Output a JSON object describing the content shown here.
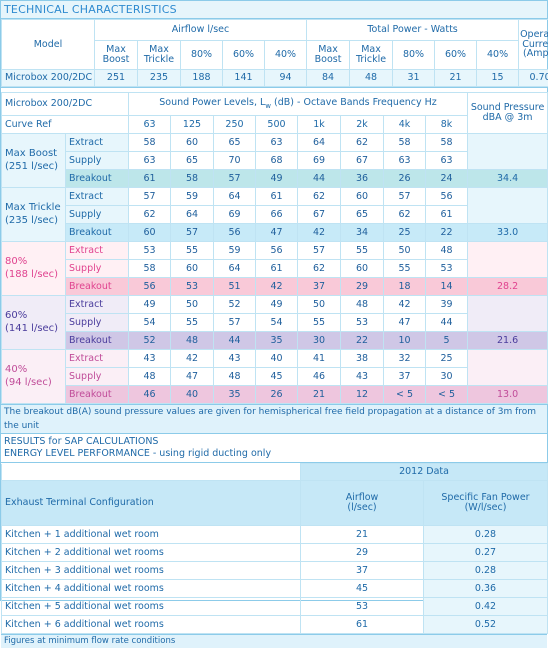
{
  "title": "TECHNICAL CHARACTERISTICS",
  "table1": {
    "model_label": "Model",
    "airflow_label": "Airflow l/sec",
    "power_label": "Total Power - Watts",
    "current_label": "Operating Current (Amps)",
    "sub_headers": [
      "Max Boost",
      "Max Trickle",
      "80%",
      "60%",
      "40%",
      "Max Boost",
      "Max Trickle",
      "80%",
      "60%",
      "40%"
    ],
    "row": {
      "model": "Microbox 200/2DC",
      "values": [
        "251",
        "235",
        "188",
        "141",
        "94",
        "84",
        "48",
        "31",
        "21",
        "15",
        "0.70"
      ]
    }
  },
  "table2": {
    "model_label": "Microbox 200/2DC",
    "sound_power_label_prefix": "Sound Power Levels, L",
    "sound_power_label_sub": "w",
    "sound_power_label_suffix": " (dB) - Octave Bands Frequency Hz",
    "sound_pressure_label": "Sound Pressure dBA @ 3m",
    "curve_ref_label": "Curve Ref",
    "bands": [
      "63",
      "125",
      "250",
      "500",
      "1k",
      "2k",
      "4k",
      "8k"
    ],
    "groups": [
      {
        "name": "Max Boost",
        "flow": "(251 l/sec)",
        "rows": [
          {
            "label": "Extract",
            "values": [
              "58",
              "60",
              "65",
              "63",
              "64",
              "62",
              "58",
              "58"
            ]
          },
          {
            "label": "Supply",
            "values": [
              "63",
              "65",
              "70",
              "68",
              "69",
              "67",
              "63",
              "63"
            ]
          },
          {
            "label": "Breakout",
            "values": [
              "61",
              "58",
              "57",
              "49",
              "44",
              "36",
              "26",
              "24"
            ]
          }
        ],
        "pressure": "34.4"
      },
      {
        "name": "Max Trickle",
        "flow": "(235 l/sec)",
        "rows": [
          {
            "label": "Extract",
            "values": [
              "57",
              "59",
              "64",
              "61",
              "62",
              "60",
              "57",
              "56"
            ]
          },
          {
            "label": "Supply",
            "values": [
              "62",
              "64",
              "69",
              "66",
              "67",
              "65",
              "62",
              "61"
            ]
          },
          {
            "label": "Breakout",
            "values": [
              "60",
              "57",
              "56",
              "47",
              "42",
              "34",
              "25",
              "22"
            ]
          }
        ],
        "pressure": "33.0"
      },
      {
        "name": "80%",
        "flow": "(188 l/sec)",
        "rows": [
          {
            "label": "Extract",
            "values": [
              "53",
              "55",
              "59",
              "56",
              "57",
              "55",
              "50",
              "48"
            ]
          },
          {
            "label": "Supply",
            "values": [
              "58",
              "60",
              "64",
              "61",
              "62",
              "60",
              "55",
              "53"
            ]
          },
          {
            "label": "Breakout",
            "values": [
              "56",
              "53",
              "51",
              "42",
              "37",
              "29",
              "18",
              "14"
            ]
          }
        ],
        "pressure": "28.2"
      },
      {
        "name": "60%",
        "flow": "(141 l/sec)",
        "rows": [
          {
            "label": "Extract",
            "values": [
              "49",
              "50",
              "52",
              "49",
              "50",
              "48",
              "42",
              "39"
            ]
          },
          {
            "label": "Supply",
            "values": [
              "54",
              "55",
              "57",
              "54",
              "55",
              "53",
              "47",
              "44"
            ]
          },
          {
            "label": "Breakout",
            "values": [
              "52",
              "48",
              "44",
              "35",
              "30",
              "22",
              "10",
              "5"
            ]
          }
        ],
        "pressure": "21.6"
      },
      {
        "name": "40%",
        "flow": "(94 l/sec)",
        "rows": [
          {
            "label": "Extract",
            "values": [
              "43",
              "42",
              "43",
              "40",
              "41",
              "38",
              "32",
              "25"
            ]
          },
          {
            "label": "Supply",
            "values": [
              "48",
              "47",
              "48",
              "45",
              "46",
              "43",
              "37",
              "30"
            ]
          },
          {
            "label": "Breakout",
            "values": [
              "46",
              "40",
              "35",
              "26",
              "21",
              "12",
              "< 5",
              "< 5"
            ]
          }
        ],
        "pressure": "13.0"
      }
    ],
    "note": "The breakout dB(A) sound pressure values are given for hemispherical free field propagation at a distance of 3m from the unit"
  },
  "sap": {
    "line1": "RESULTS for SAP CALCULATIONS",
    "line2": "ENERGY LEVEL PERFORMANCE - using rigid ducting only",
    "data_year": "2012 Data",
    "config_label": "Exhaust Terminal Configuration",
    "airflow_label": "Airflow (l/sec)",
    "sfp_label": "Specific Fan Power (W/l/sec)",
    "rows": [
      {
        "config": "Kitchen + 1 additional wet room",
        "airflow": "21",
        "sfp": "0.28"
      },
      {
        "config": "Kitchen + 2 additional wet rooms",
        "airflow": "29",
        "sfp": "0.27"
      },
      {
        "config": "Kitchen + 3 additional wet rooms",
        "airflow": "37",
        "sfp": "0.28"
      },
      {
        "config": "Kitchen + 4 additional wet rooms",
        "airflow": "45",
        "sfp": "0.36"
      },
      {
        "config": "Kitchen + 5 additional wet rooms",
        "airflow": "53",
        "sfp": "0.42"
      },
      {
        "config": "Kitchen + 6 additional wet rooms",
        "airflow": "61",
        "sfp": "0.52"
      }
    ],
    "footnote": "Figures at minimum flow rate conditions"
  }
}
